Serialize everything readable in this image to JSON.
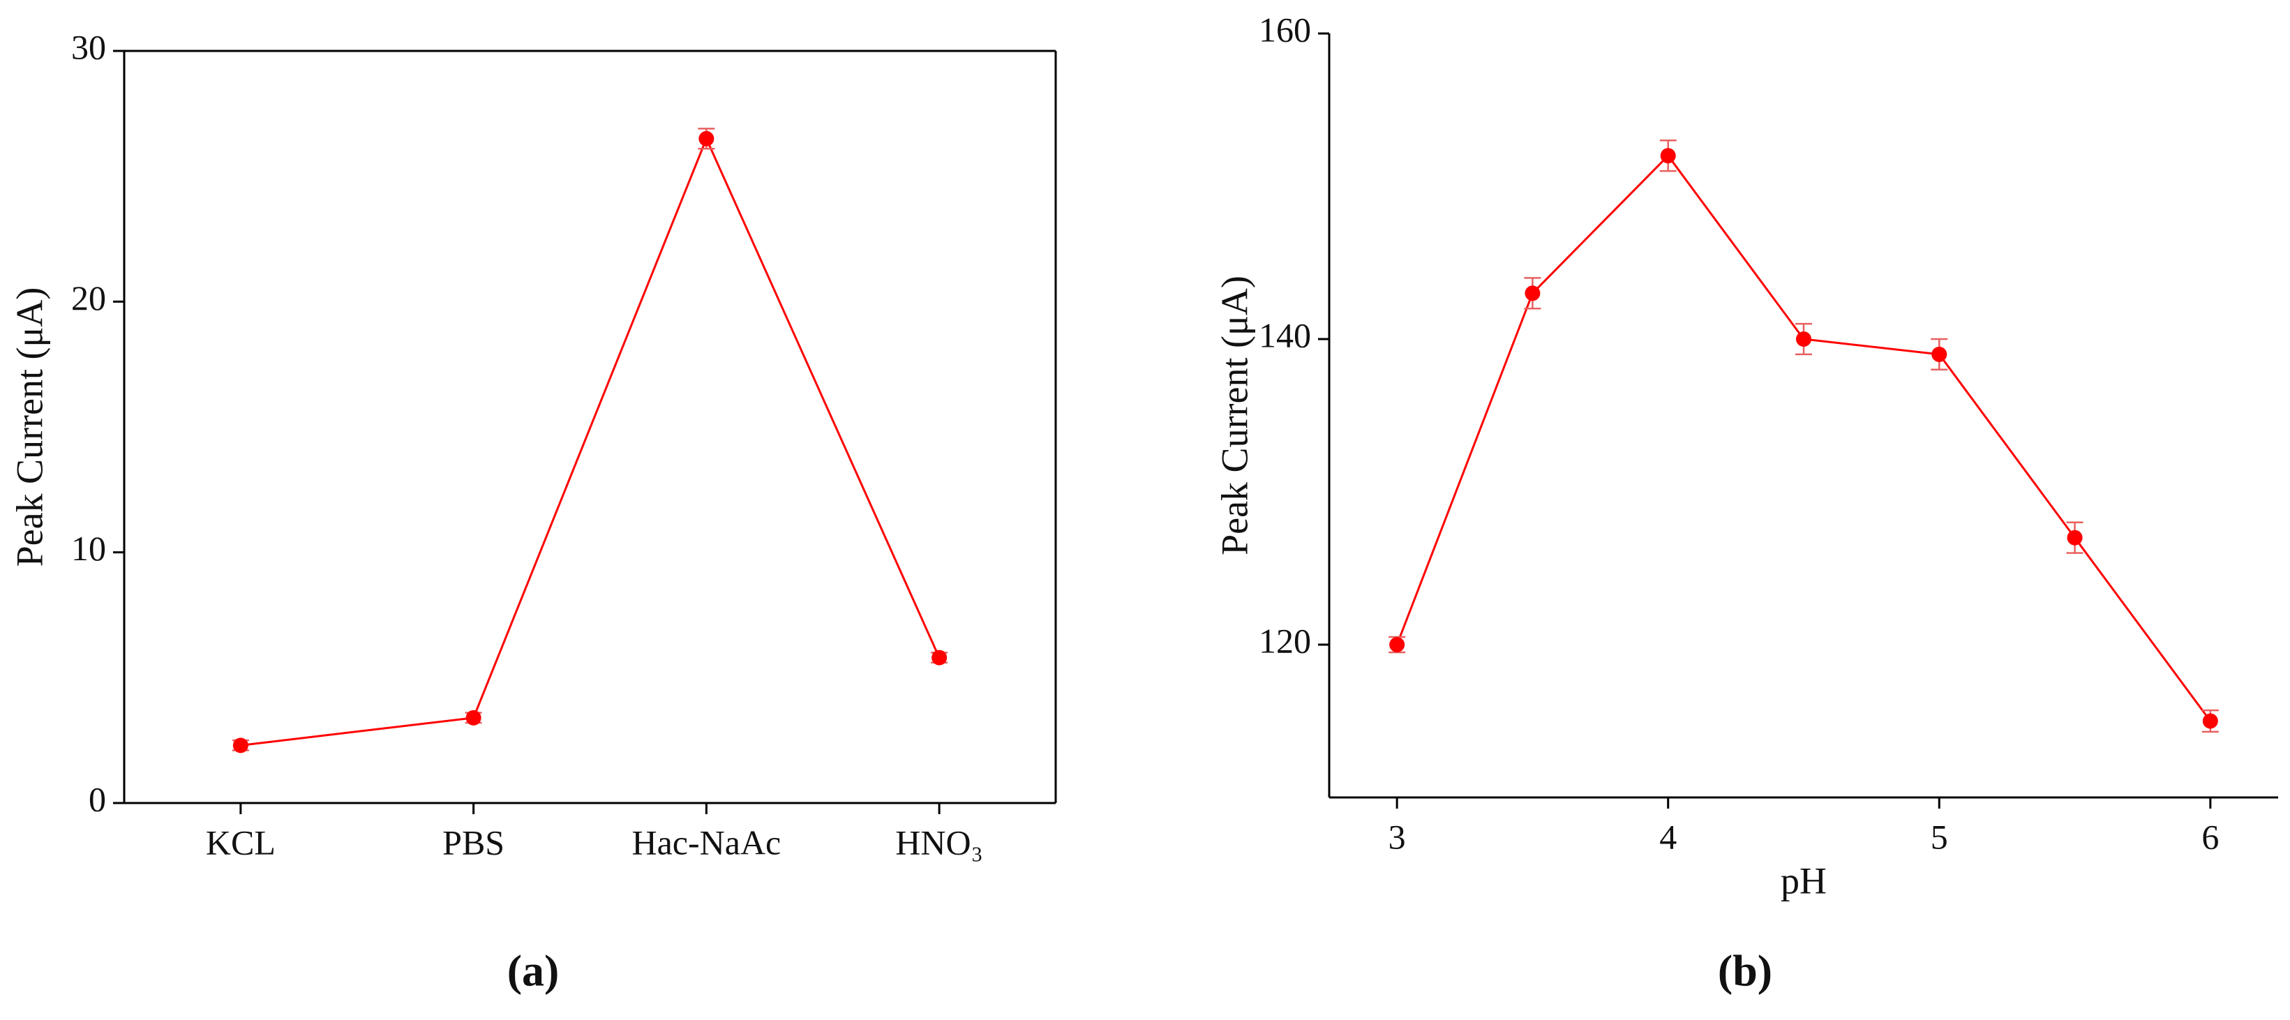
{
  "chart_data": [
    {
      "type": "line",
      "label": "(a)",
      "ylabel": "Peak Current (μA)",
      "categories": [
        "KCL",
        "PBS",
        "Hac-NaAc",
        "HNO₃"
      ],
      "series": [
        {
          "color": "#ff0000",
          "values": [
            2.3,
            3.4,
            26.5,
            5.8
          ],
          "errors": [
            0.2,
            0.2,
            0.4,
            0.2
          ]
        }
      ],
      "ylim": [
        0,
        30
      ],
      "yticks": [
        0,
        10,
        20,
        30
      ],
      "frame": true
    },
    {
      "type": "line",
      "label": "(b)",
      "ylabel": "Peak Current (μA)",
      "xlabel": "pH",
      "x": [
        3,
        3.5,
        4,
        4.5,
        5,
        5.5,
        6
      ],
      "series": [
        {
          "color": "#ff0000",
          "values": [
            120,
            143,
            152,
            140,
            139,
            127,
            115
          ],
          "errors": [
            0.5,
            1,
            1,
            1,
            1,
            1,
            0.7
          ]
        }
      ],
      "xlim": [
        2.75,
        6.25
      ],
      "xticks": [
        3,
        4,
        5,
        6
      ],
      "ylim": [
        110,
        160
      ],
      "yticks": [
        120,
        140,
        160
      ],
      "frame": false
    }
  ]
}
